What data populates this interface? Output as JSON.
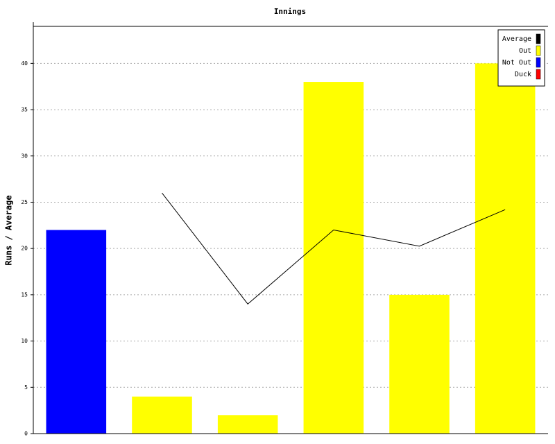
{
  "chart_data": {
    "type": "bar",
    "title": "Innings",
    "y_label": "Runs / Average",
    "categories": [
      null,
      null,
      null,
      null,
      null,
      null
    ],
    "series": [
      {
        "name": "Average",
        "type": "line",
        "color": "#000000",
        "values": [
          null,
          26,
          14,
          22,
          20.25,
          24.2
        ]
      },
      {
        "name": "Out",
        "type": "bar",
        "color": "#ffff00",
        "values": [
          null,
          4,
          2,
          38,
          15,
          40
        ]
      },
      {
        "name": "Not Out",
        "type": "bar",
        "color": "#0000ff",
        "values": [
          22,
          null,
          null,
          null,
          null,
          null
        ]
      },
      {
        "name": "Duck",
        "type": "bar",
        "color": "#ff0000",
        "values": [
          null,
          null,
          null,
          null,
          null,
          null
        ]
      }
    ],
    "ylim": [
      0,
      44
    ],
    "yticks": [
      0,
      5,
      10,
      15,
      20,
      25,
      30,
      35,
      40
    ],
    "grid": true,
    "legend": "top-right"
  }
}
